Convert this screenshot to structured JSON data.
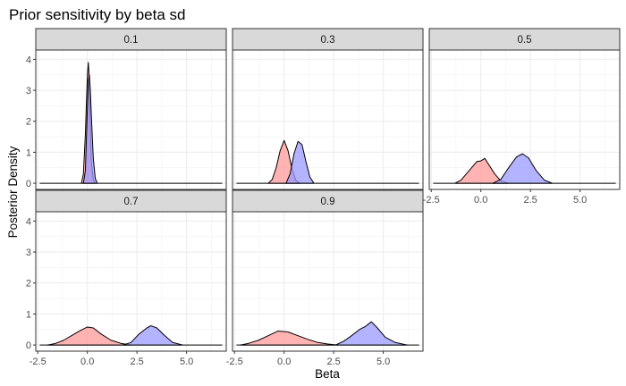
{
  "chart_data": {
    "type": "area",
    "title": "Prior sensitivity by beta sd",
    "xlabel": "Beta",
    "ylabel": "Posterior Density",
    "xlim": [
      -2.6,
      7.0
    ],
    "ylim": [
      -0.2,
      4.3
    ],
    "x_ticks": [
      -2.5,
      0,
      2.5,
      5
    ],
    "x_tick_labels": [
      "-2.5",
      "0.0",
      "2.5",
      "5.0"
    ],
    "y_ticks": [
      0,
      1,
      2,
      3,
      4
    ],
    "y_tick_labels": [
      "0",
      "1",
      "2",
      "3",
      "4"
    ],
    "grid": true,
    "layout": "facet_wrap, 3 columns, shared axes",
    "series_colors": [
      "#ff9999",
      "#9999ff"
    ],
    "baseline_range": [
      -2.4,
      6.8
    ],
    "panels": [
      {
        "label": "0.1",
        "series": [
          {
            "color": "#ff9999",
            "x": [
              -0.3,
              -0.2,
              -0.1,
              0.0,
              0.05,
              0.1,
              0.15,
              0.2,
              0.3,
              0.4
            ],
            "y": [
              0,
              0.3,
              1.6,
              3.5,
              3.9,
              3.3,
              1.8,
              0.7,
              0.1,
              0
            ]
          },
          {
            "color": "#9999ff",
            "x": [
              -0.2,
              -0.1,
              0.0,
              0.05,
              0.1,
              0.15,
              0.2,
              0.3,
              0.4,
              0.5
            ],
            "y": [
              0,
              0.4,
              2.4,
              3.3,
              3.5,
              3.0,
              2.2,
              0.8,
              0.15,
              0
            ]
          }
        ]
      },
      {
        "label": "0.3",
        "series": [
          {
            "color": "#ff9999",
            "x": [
              -0.8,
              -0.6,
              -0.4,
              -0.2,
              0.0,
              0.2,
              0.4,
              0.6,
              0.8
            ],
            "y": [
              0,
              0.12,
              0.5,
              1.05,
              1.38,
              1.05,
              0.45,
              0.08,
              0
            ]
          },
          {
            "color": "#9999ff",
            "x": [
              0.1,
              0.3,
              0.5,
              0.7,
              0.9,
              1.1,
              1.3,
              1.5
            ],
            "y": [
              0,
              0.3,
              0.95,
              1.35,
              1.25,
              0.7,
              0.2,
              0
            ]
          }
        ]
      },
      {
        "label": "0.5",
        "series": [
          {
            "color": "#ff9999",
            "x": [
              -1.3,
              -1.0,
              -0.6,
              -0.2,
              0.0,
              0.2,
              0.4,
              0.7,
              1.0,
              1.4
            ],
            "y": [
              0,
              0.1,
              0.4,
              0.7,
              0.72,
              0.8,
              0.6,
              0.3,
              0.08,
              0
            ]
          },
          {
            "color": "#9999ff",
            "x": [
              0.6,
              1.0,
              1.4,
              1.8,
              2.1,
              2.4,
              2.8,
              3.2,
              3.6
            ],
            "y": [
              0,
              0.12,
              0.5,
              0.85,
              0.95,
              0.82,
              0.4,
              0.1,
              0
            ]
          }
        ]
      },
      {
        "label": "0.7",
        "series": [
          {
            "color": "#ff9999",
            "x": [
              -2.0,
              -1.6,
              -1.2,
              -0.8,
              -0.4,
              0.0,
              0.3,
              0.7,
              1.2,
              1.7,
              2.2
            ],
            "y": [
              0,
              0.05,
              0.15,
              0.3,
              0.45,
              0.58,
              0.55,
              0.35,
              0.15,
              0.05,
              0
            ]
          },
          {
            "color": "#9999ff",
            "x": [
              1.8,
              2.2,
              2.6,
              3.0,
              3.2,
              3.5,
              3.9,
              4.3,
              4.8
            ],
            "y": [
              0,
              0.08,
              0.35,
              0.55,
              0.62,
              0.55,
              0.3,
              0.08,
              0
            ]
          }
        ]
      },
      {
        "label": "0.9",
        "series": [
          {
            "color": "#ff9999",
            "x": [
              -2.2,
              -1.8,
              -1.3,
              -0.8,
              -0.3,
              0.2,
              0.7,
              1.2,
              1.7,
              2.2,
              2.7
            ],
            "y": [
              0,
              0.05,
              0.15,
              0.3,
              0.45,
              0.42,
              0.3,
              0.18,
              0.08,
              0.03,
              0
            ]
          },
          {
            "color": "#9999ff",
            "x": [
              2.6,
              3.0,
              3.4,
              3.8,
              4.1,
              4.4,
              4.7,
              5.1,
              5.6,
              6.2
            ],
            "y": [
              0,
              0.12,
              0.3,
              0.5,
              0.6,
              0.75,
              0.55,
              0.25,
              0.08,
              0
            ]
          }
        ]
      }
    ]
  }
}
